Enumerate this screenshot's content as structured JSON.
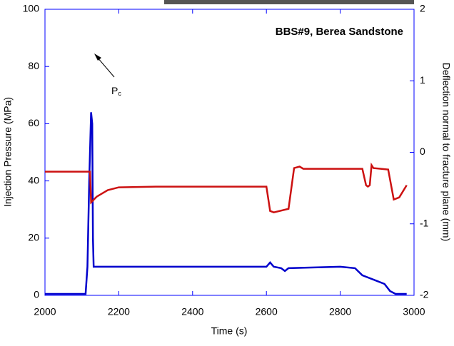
{
  "chart_data": {
    "type": "line",
    "title": "BBS#9, Berea Sandstone",
    "xlabel": "Time (s)",
    "ylabel": "Injection Pressure (MPa)",
    "y2label": "Deflection normal to fracture plane (mm)",
    "annotation": {
      "text": "P",
      "subscript": "c"
    },
    "xlim": [
      2000,
      3000
    ],
    "xticks": [
      2000,
      2200,
      2400,
      2600,
      2800,
      3000
    ],
    "ylim": [
      0,
      100
    ],
    "yticks": [
      0,
      20,
      40,
      60,
      80,
      100
    ],
    "y2lim": [
      -2,
      2
    ],
    "y2ticks": [
      -2,
      -1,
      0,
      1,
      2
    ],
    "series": [
      {
        "color": "#0000cc",
        "axis": "y",
        "x": [
          2000,
          2110,
          2115,
          2120,
          2125,
          2128,
          2130,
          2132,
          2140,
          2600,
          2610,
          2620,
          2640,
          2650,
          2660,
          2800,
          2840,
          2860,
          2900,
          2920,
          2935,
          2950,
          2980
        ],
        "values": [
          0.5,
          0.5,
          10,
          40,
          64,
          60,
          20,
          10,
          10,
          10,
          11.5,
          10,
          9.5,
          8.5,
          9.5,
          10,
          9.5,
          7,
          5,
          4,
          1.5,
          0.5,
          0.5
        ]
      },
      {
        "color": "#cc1111",
        "axis": "y2",
        "x": [
          2000,
          2122,
          2125,
          2140,
          2170,
          2200,
          2300,
          2600,
          2610,
          2620,
          2660,
          2675,
          2690,
          2700,
          2860,
          2870,
          2875,
          2880,
          2885,
          2890,
          2910,
          2930,
          2945,
          2960,
          2980
        ],
        "values": [
          -0.27,
          -0.27,
          -0.7,
          -0.62,
          -0.53,
          -0.49,
          -0.48,
          -0.48,
          -0.82,
          -0.84,
          -0.79,
          -0.22,
          -0.2,
          -0.23,
          -0.23,
          -0.46,
          -0.48,
          -0.46,
          -0.18,
          -0.22,
          -0.23,
          -0.24,
          -0.66,
          -0.63,
          -0.46
        ]
      }
    ]
  }
}
